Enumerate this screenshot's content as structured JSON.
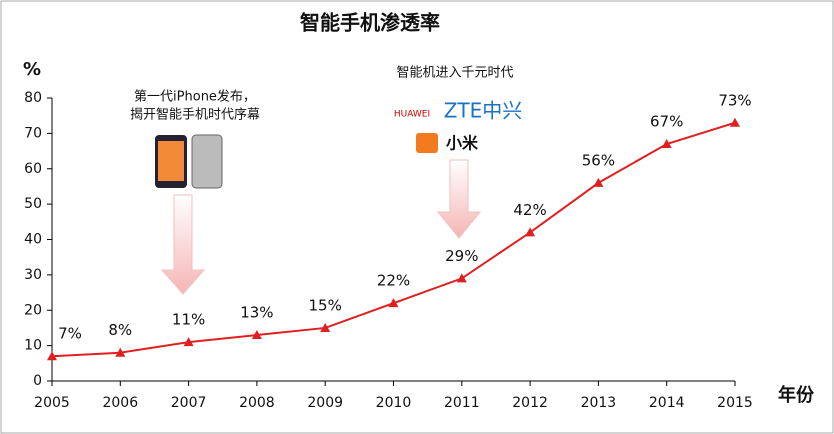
{
  "chart_data": {
    "type": "line",
    "title": "智能手机渗透率",
    "y_label": "%",
    "x_label": "年份",
    "categories": [
      "2005",
      "2006",
      "2007",
      "2008",
      "2009",
      "2010",
      "2011",
      "2012",
      "2013",
      "2014",
      "2015"
    ],
    "series": [
      {
        "name": "智能手机渗透率",
        "color": "#e02020",
        "values": [
          7,
          8,
          11,
          13,
          15,
          22,
          29,
          42,
          56,
          67,
          73
        ],
        "value_labels": [
          "7%",
          "8%",
          "11%",
          "13%",
          "15%",
          "22%",
          "29%",
          "42%",
          "56%",
          "67%",
          "73%"
        ]
      }
    ],
    "ylim": [
      0,
      80
    ],
    "yticks": [
      0,
      10,
      20,
      30,
      40,
      50,
      60,
      70,
      80
    ],
    "grid": false,
    "annotations": [
      "第一代iPhone发布，",
      "揭开智能手机时代序幕",
      "智能机进入千元时代"
    ],
    "logos": [
      "HUAWEI",
      "ZTE中兴",
      "小米"
    ]
  }
}
